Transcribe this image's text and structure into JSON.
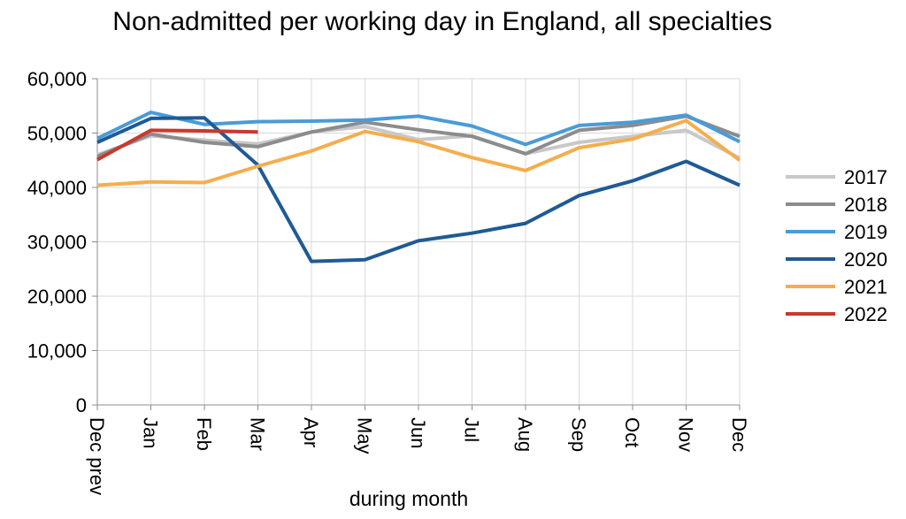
{
  "chart_data": {
    "type": "line",
    "title": "Non-admitted per working day in England, all specialties",
    "xlabel": "during  month",
    "ylabel": "",
    "ylim": [
      0,
      60000
    ],
    "ytick_labels": [
      "0",
      "10,000",
      "20,000",
      "30,000",
      "40,000",
      "50,000",
      "60,000"
    ],
    "categories": [
      "Dec prev",
      "Jan",
      "Feb",
      "Mar",
      "Apr",
      "May",
      "Jun",
      "Jul",
      "Aug",
      "Sep",
      "Oct",
      "Nov",
      "Dec"
    ],
    "grid": true,
    "legend_position": "right",
    "series": [
      {
        "name": "2017",
        "color": "#c8c8c8",
        "values": [
          46000,
          49500,
          48700,
          48000,
          50200,
          51200,
          48800,
          49500,
          46200,
          48300,
          49400,
          50500,
          45400
        ]
      },
      {
        "name": "2018",
        "color": "#8c8c8c",
        "values": [
          45700,
          49800,
          48300,
          47500,
          50200,
          52000,
          50600,
          49400,
          46200,
          50500,
          51400,
          53100,
          49400
        ]
      },
      {
        "name": "2019",
        "color": "#4a9bd8",
        "values": [
          49000,
          53800,
          51600,
          52100,
          52200,
          52400,
          53100,
          51300,
          47900,
          51400,
          52000,
          53300,
          48400
        ]
      },
      {
        "name": "2020",
        "color": "#1f5a96",
        "values": [
          48300,
          52700,
          52800,
          44100,
          26400,
          26700,
          30200,
          31600,
          33400,
          38500,
          41200,
          44800,
          40400
        ]
      },
      {
        "name": "2021",
        "color": "#f5ad4c",
        "values": [
          40400,
          41000,
          40900,
          43900,
          46700,
          50300,
          48400,
          45500,
          43100,
          47300,
          48900,
          52300,
          45000
        ]
      },
      {
        "name": "2022",
        "color": "#c8392c",
        "values": [
          45100,
          50500,
          50400,
          50200,
          null,
          null,
          null,
          null,
          null,
          null,
          null,
          null,
          null
        ]
      }
    ]
  }
}
